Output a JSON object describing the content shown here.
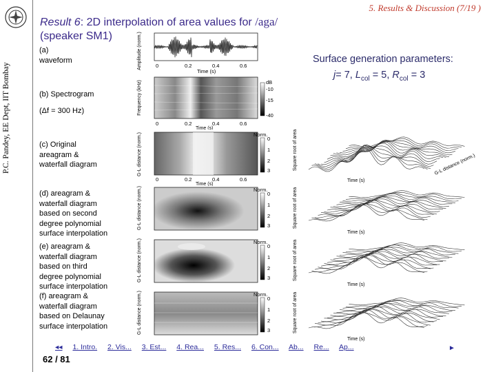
{
  "sidebar": {
    "author": "P.C. Pandey, EE Dept, IIT Bombay"
  },
  "header": {
    "section": "5. Results & Discussion (7/19 )"
  },
  "slide": {
    "title_prefix": "Result 6",
    "title_main": ": 2D interpolation of area values for ",
    "title_word": "/aga/",
    "title_sub": "(speaker SM1)"
  },
  "labels": {
    "a1": "(a)",
    "a2": "waveform",
    "b1": "(b) Spectrogram",
    "b2": "(Δf = 300 Hz)",
    "c1": "(c) Original",
    "c2": "areagram &",
    "c3": "waterfall diagram",
    "d1": "(d) areagram &",
    "d2": "waterfall diagram",
    "d3": "based on second",
    "d4": "degree polynomial",
    "d5": "surface interpolation",
    "e1": "(e) areagram &",
    "e2": "waterfall diagram",
    "e3": "based on third",
    "e4": "degree polynomial",
    "e5": "surface interpolation",
    "f1": "(f) areagram &",
    "f2": "waterfall diagram",
    "f3": "based on Delaunay",
    "f4": "surface interpolation"
  },
  "params": {
    "heading": "Surface generation parameters:",
    "j_label": "j",
    "j_val": "= 7, ",
    "l_label": "L",
    "l_sub": "col",
    "l_val": " = 5, ",
    "r_label": "R",
    "r_sub": "col",
    "r_val": " = 3"
  },
  "plots": {
    "wave_ylabel": "Amplitude (norm.)",
    "spec_ylabel": "Frequency (kHz)",
    "area_ylabel": "G-L distance (norm.)",
    "time_label": "Time (s)",
    "t0": "0",
    "t1": "0.2",
    "t2": "0.4",
    "t3": "0.6",
    "db_label": "dB",
    "db1": "-10",
    "db2": "-15",
    "db3": "-40",
    "norm_label": "Norm.",
    "n0": "0",
    "n1": "1",
    "n2": "2",
    "n3": "3",
    "wf_zlabel": "Square root of area",
    "wf_xlabel": "Time (s)",
    "wf_ylabel": "G-L distance (norm.)"
  },
  "nav": {
    "back": "◂◂",
    "items": [
      "1. Intro.",
      "2. Vis...",
      "3. Est...",
      "4. Rea...",
      "5. Res...",
      "6. Con...",
      "Ab...",
      "Re...",
      "Ap..."
    ],
    "fwd": "►"
  },
  "footer": {
    "page": "62 / 81"
  }
}
